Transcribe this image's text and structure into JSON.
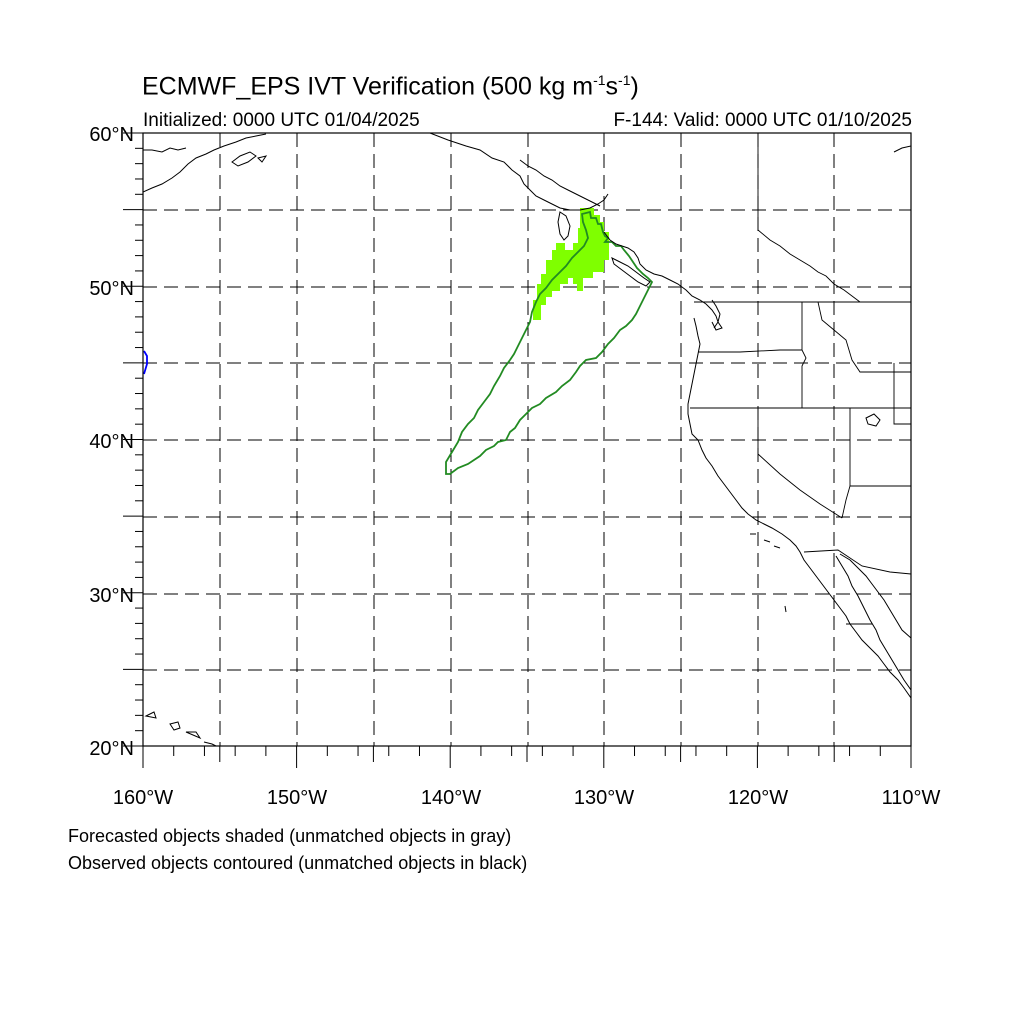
{
  "title": {
    "main": "ECMWF_EPS IVT Verification (500 kg m",
    "exp1": "-1",
    "mid": "s",
    "exp2": "-1",
    "end": ")"
  },
  "initialized": "Initialized: 0000 UTC 01/04/2025",
  "valid": "F-144: Valid: 0000 UTC 01/10/2025",
  "map": {
    "lon_range": [
      -160,
      -110
    ],
    "lat_range": [
      20,
      60
    ],
    "gridlines": "dashed every 5°",
    "lon_labels": [
      "160°W",
      "150°W",
      "140°W",
      "130°W",
      "120°W",
      "110°W"
    ],
    "lat_labels": [
      "60°N",
      "50°N",
      "40°N",
      "30°N",
      "20°N"
    ],
    "colors": {
      "forecast_object": "#7fff00",
      "observed_contour": "#228b22",
      "edge_object": "#0000ff",
      "coastline": "#000000"
    }
  },
  "footnotes": [
    "Forecasted objects shaded (unmatched objects in gray)",
    "Observed objects contoured (unmatched objects in black)"
  ]
}
